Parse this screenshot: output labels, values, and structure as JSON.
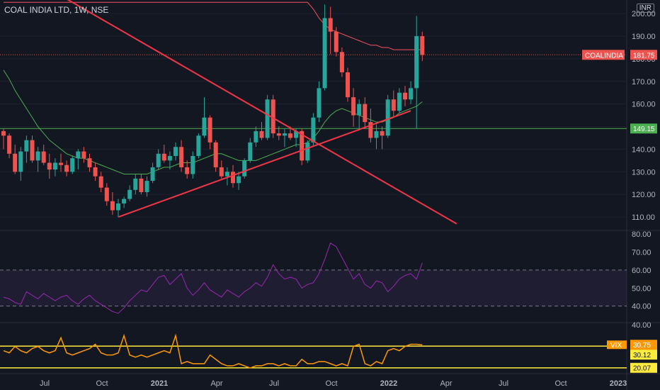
{
  "header": {
    "title": "COAL INDIA LTD, 1W, NSE",
    "currency": "INR"
  },
  "colors": {
    "background": "#131722",
    "up": "#26a69a",
    "down": "#ef5350",
    "trend": "#f23645",
    "sma_long": "#f7525f",
    "sma_short": "#4caf50",
    "rsi": "#9c27b0",
    "vix": "#ff9800",
    "level": "#ffeb3b"
  },
  "chart_data": [
    {
      "type": "candlestick",
      "title": "COAL INDIA LTD, 1W, NSE",
      "ylim": [
        105,
        206
      ],
      "yticks": [
        110,
        120,
        130,
        140,
        150,
        160,
        170,
        180,
        190,
        200
      ],
      "x_labels": [
        "Jul",
        "Oct",
        "2021",
        "Apr",
        "Jul",
        "Oct",
        "2022",
        "Apr",
        "Jul",
        "Oct",
        "2023"
      ],
      "grid": true,
      "last_price": 181.75,
      "last_price_label": "COALINDIA",
      "horizontal_level": 149.15,
      "candles": [
        [
          148,
          149,
          140,
          146
        ],
        [
          146,
          147,
          136,
          138
        ],
        [
          138,
          142,
          129,
          130
        ],
        [
          130,
          141,
          126,
          139
        ],
        [
          139,
          146,
          134,
          144
        ],
        [
          144,
          146,
          134,
          135
        ],
        [
          135,
          141,
          130,
          139
        ],
        [
          139,
          142,
          133,
          134
        ],
        [
          134,
          138,
          127,
          131
        ],
        [
          131,
          136,
          128,
          134
        ],
        [
          134,
          138,
          130,
          133
        ],
        [
          133,
          135,
          128,
          130
        ],
        [
          130,
          137,
          129,
          136
        ],
        [
          136,
          140,
          131,
          139
        ],
        [
          139,
          141,
          134,
          136
        ],
        [
          136,
          138,
          130,
          132
        ],
        [
          132,
          134,
          126,
          128
        ],
        [
          128,
          130,
          121,
          123
        ],
        [
          123,
          125,
          115,
          117
        ],
        [
          117,
          121,
          111,
          113
        ],
        [
          113,
          118,
          110,
          116
        ],
        [
          116,
          119,
          114,
          118
        ],
        [
          118,
          124,
          117,
          122
        ],
        [
          122,
          129,
          120,
          127
        ],
        [
          127,
          129,
          120,
          121
        ],
        [
          121,
          128,
          119,
          126
        ],
        [
          126,
          134,
          125,
          132
        ],
        [
          132,
          140,
          131,
          138
        ],
        [
          138,
          142,
          134,
          135
        ],
        [
          135,
          139,
          131,
          137
        ],
        [
          137,
          143,
          135,
          141
        ],
        [
          141,
          144,
          130,
          132
        ],
        [
          132,
          135,
          127,
          129
        ],
        [
          129,
          139,
          127,
          137
        ],
        [
          137,
          147,
          136,
          146
        ],
        [
          146,
          163,
          145,
          154
        ],
        [
          154,
          155,
          140,
          143
        ],
        [
          143,
          144,
          130,
          132
        ],
        [
          132,
          135,
          127,
          128
        ],
        [
          128,
          132,
          124,
          130
        ],
        [
          130,
          133,
          123,
          125
        ],
        [
          125,
          130,
          122,
          128
        ],
        [
          128,
          136,
          127,
          135
        ],
        [
          135,
          145,
          134,
          143
        ],
        [
          143,
          150,
          141,
          148
        ],
        [
          148,
          152,
          144,
          145
        ],
        [
          145,
          164,
          144,
          162
        ],
        [
          162,
          164,
          145,
          147
        ],
        [
          147,
          150,
          144,
          146
        ],
        [
          146,
          149,
          141,
          147
        ],
        [
          147,
          150,
          144,
          145
        ],
        [
          145,
          149,
          141,
          148
        ],
        [
          148,
          149,
          133,
          135
        ],
        [
          135,
          144,
          134,
          143
        ],
        [
          143,
          156,
          141,
          154
        ],
        [
          154,
          170,
          152,
          167
        ],
        [
          167,
          204,
          166,
          198
        ],
        [
          198,
          203,
          182,
          192
        ],
        [
          192,
          194,
          181,
          183
        ],
        [
          183,
          185,
          172,
          174
        ],
        [
          174,
          176,
          161,
          163
        ],
        [
          163,
          167,
          150,
          155
        ],
        [
          155,
          162,
          149,
          160
        ],
        [
          160,
          163,
          149,
          152
        ],
        [
          152,
          158,
          143,
          145
        ],
        [
          145,
          151,
          140,
          148
        ],
        [
          148,
          150,
          140,
          146
        ],
        [
          146,
          164,
          145,
          162
        ],
        [
          162,
          166,
          154,
          157
        ],
        [
          157,
          167,
          156,
          165
        ],
        [
          165,
          168,
          159,
          162
        ],
        [
          162,
          170,
          160,
          167
        ],
        [
          167,
          199,
          149,
          190
        ],
        [
          190,
          192,
          179,
          181.75
        ]
      ],
      "series": [
        {
          "name": "",
          "role": "sma_long",
          "values": [
            205,
            205,
            205,
            205,
            205,
            205,
            205,
            205,
            205,
            205,
            205,
            205,
            205,
            205,
            205,
            205,
            205,
            205,
            205,
            205,
            205,
            205,
            205,
            205,
            205,
            205,
            205,
            205,
            205,
            205,
            205,
            205,
            205,
            205,
            205,
            205,
            205,
            205,
            205,
            205,
            205,
            205,
            205,
            205,
            205,
            205,
            205,
            205,
            205,
            205,
            205,
            205,
            205,
            205,
            202,
            198,
            195,
            193,
            192,
            191,
            190,
            189,
            188,
            187,
            186,
            186,
            185,
            185,
            184,
            184,
            184,
            184,
            184,
            184
          ]
        },
        {
          "name": "",
          "role": "sma_short",
          "values": [
            175,
            171,
            166,
            162,
            158,
            154,
            150,
            147,
            144,
            142,
            140,
            138,
            137,
            136,
            136,
            135,
            134,
            133,
            132,
            131,
            130,
            129,
            129,
            129,
            129,
            129,
            130,
            131,
            132,
            132,
            133,
            134,
            134,
            134,
            135,
            136,
            137,
            138,
            138,
            137,
            136,
            135,
            135,
            135,
            135,
            136,
            137,
            138,
            139,
            140,
            141,
            142,
            142,
            143,
            145,
            148,
            152,
            155,
            157,
            158,
            157,
            156,
            155,
            154,
            153,
            152,
            152,
            153,
            154,
            156,
            157,
            158,
            159,
            161
          ]
        }
      ],
      "trendlines": [
        {
          "from": [
            -1,
            224
          ],
          "to": [
            79,
            107
          ]
        },
        {
          "from": [
            20,
            110
          ],
          "to": [
            71,
            157
          ]
        }
      ]
    },
    {
      "type": "line",
      "title": "",
      "ylim": [
        32,
        82
      ],
      "yticks": [
        40,
        50,
        60,
        70,
        80
      ],
      "band": [
        40,
        60
      ],
      "series": [
        {
          "name": "",
          "values": [
            45,
            44,
            42,
            41,
            48,
            46,
            44,
            47,
            45,
            43,
            45,
            46,
            43,
            41,
            44,
            46,
            43,
            41,
            39,
            37,
            36,
            39,
            43,
            46,
            49,
            48,
            52,
            56,
            57,
            52,
            55,
            58,
            50,
            46,
            49,
            53,
            49,
            47,
            45,
            49,
            47,
            45,
            48,
            50,
            53,
            51,
            56,
            63,
            58,
            55,
            56,
            55,
            50,
            52,
            53,
            58,
            66,
            75,
            73,
            67,
            61,
            55,
            58,
            52,
            50,
            54,
            53,
            48,
            51,
            55,
            57,
            58,
            55,
            64
          ]
        }
      ]
    },
    {
      "type": "line",
      "title": "",
      "ylim": [
        19,
        41
      ],
      "yticks": [
        30,
        40
      ],
      "levels": [
        30.12,
        20.07
      ],
      "last_value_label": "VIX",
      "last_value": 30.75,
      "series": [
        {
          "name": "",
          "values": [
            28,
            27,
            30,
            28,
            27,
            29,
            30,
            28,
            27,
            28,
            34,
            27,
            26,
            27,
            28,
            29,
            31,
            27,
            26,
            26,
            27,
            35,
            26,
            25,
            26,
            25,
            26,
            27,
            28,
            27,
            35,
            22,
            23,
            22,
            22,
            22,
            26,
            24,
            22,
            21,
            21,
            22,
            21,
            20,
            21,
            21,
            22,
            22,
            21,
            22,
            21,
            21,
            24,
            22,
            22,
            23,
            23,
            22,
            21,
            22,
            21,
            30,
            31,
            22,
            21,
            23,
            22,
            28,
            29,
            28,
            30,
            31,
            31,
            30.75
          ]
        }
      ]
    }
  ]
}
